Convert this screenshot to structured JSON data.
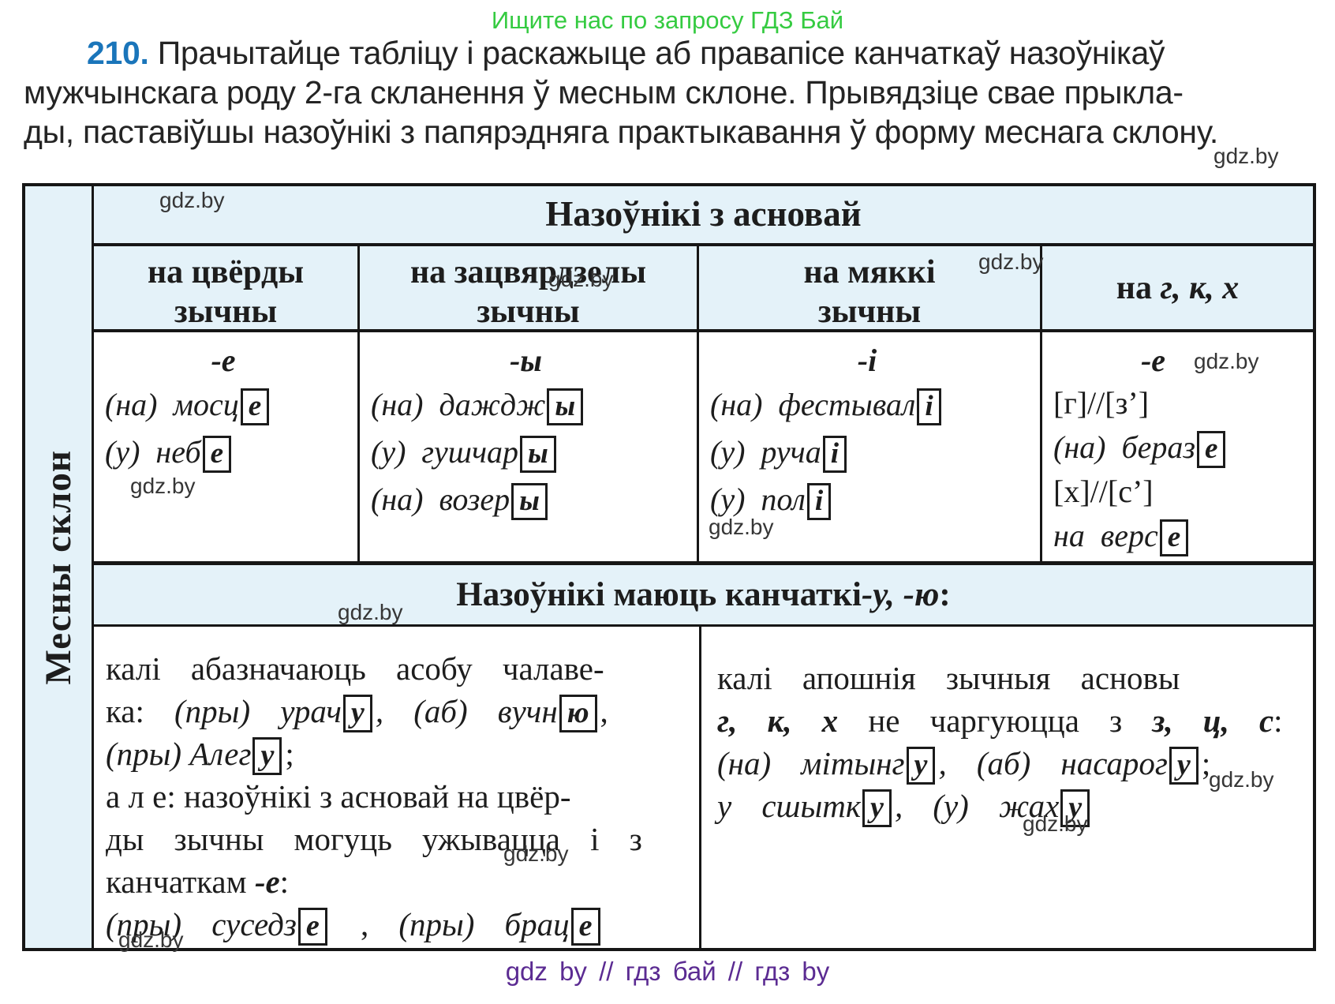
{
  "page": {
    "top_banner": "Ищите нас по запросу ГДЗ Бай",
    "exercise_number": "210.",
    "paragraph_lines": [
      "Прачытайце табліцу і раскажыце аб правапісе канчаткаў назоўнікаў",
      "мужчынскага роду 2-га скланення ў месным склоне. Прывядзіце свае прыкла-",
      "ды, паставіўшы назоўнікі з папярэдняга практыкавання ў форму меснага склону."
    ],
    "watermark": "gdz.by",
    "footer": "gdz by  //  гдз бай  //  гдз by"
  },
  "colors": {
    "banner_green": "#35cb41",
    "exercise_blue": "#1a75ba",
    "footer_purple": "#5b2b92",
    "table_header_bg": "#e4f2f9",
    "border_black": "#161616"
  },
  "table": {
    "row_header": "Месны склон",
    "span_header": "Назоўнікі з асновай",
    "col_headers": [
      {
        "line1": [
          {
            "t": "на цвёрды",
            "s": "b"
          }
        ],
        "line2": [
          {
            "t": "зычны",
            "s": "b"
          }
        ]
      },
      {
        "line1": [
          {
            "t": "на зацвярдзелы",
            "s": "b"
          }
        ],
        "line2": [
          {
            "t": "зычны",
            "s": "b"
          }
        ]
      },
      {
        "line1": [
          {
            "t": "на мяккі",
            "s": "b"
          }
        ],
        "line2": [
          {
            "t": "зычны",
            "s": "b"
          }
        ]
      },
      {
        "line1": [
          {
            "t": "на ",
            "s": "b"
          },
          {
            "t": "г, к, х",
            "s": "bi"
          }
        ],
        "line2": []
      }
    ],
    "cells": [
      {
        "ending": [
          {
            "t": "-е",
            "s": "bi"
          }
        ],
        "lines": [
          {
            "seg": [
              {
                "t": "(на) мосц",
                "s": "i"
              },
              {
                "t": "е",
                "s": "box"
              }
            ]
          },
          {
            "seg": [
              {
                "t": "(у) неб",
                "s": "i"
              },
              {
                "t": "е",
                "s": "box"
              }
            ]
          }
        ]
      },
      {
        "ending": [
          {
            "t": "-ы",
            "s": "bi"
          }
        ],
        "lines": [
          {
            "seg": [
              {
                "t": "(на) даждж",
                "s": "i"
              },
              {
                "t": "ы",
                "s": "box"
              }
            ]
          },
          {
            "seg": [
              {
                "t": "(у) гушчар",
                "s": "i"
              },
              {
                "t": "ы",
                "s": "box"
              }
            ]
          },
          {
            "seg": [
              {
                "t": "(на) возер",
                "s": "i"
              },
              {
                "t": "ы",
                "s": "box"
              }
            ]
          }
        ]
      },
      {
        "ending": [
          {
            "t": "-і",
            "s": "bi"
          }
        ],
        "lines": [
          {
            "seg": [
              {
                "t": "(на) фестывал",
                "s": "i"
              },
              {
                "t": "і",
                "s": "box"
              }
            ]
          },
          {
            "seg": [
              {
                "t": "(у) руча",
                "s": "i"
              },
              {
                "t": "і",
                "s": "box"
              }
            ]
          },
          {
            "seg": [
              {
                "t": "(у) пол",
                "s": "i"
              },
              {
                "t": "і",
                "s": "box"
              }
            ]
          }
        ]
      },
      {
        "ending": [
          {
            "t": "-е",
            "s": "bi"
          }
        ],
        "lines": [
          {
            "seg": [
              {
                "t": "[г]//[з’]",
                "s": "p"
              }
            ]
          },
          {
            "seg": [
              {
                "t": "(на) бераз",
                "s": "i"
              },
              {
                "t": "е",
                "s": "box"
              }
            ]
          },
          {
            "seg": [
              {
                "t": "[х]//[с’]",
                "s": "p"
              }
            ]
          },
          {
            "seg": [
              {
                "t": "на верс",
                "s": "i"
              },
              {
                "t": "е",
                "s": "box"
              }
            ]
          }
        ]
      }
    ],
    "note": [
      {
        "t": "Назоўнікі маюць канчаткі ",
        "s": "b"
      },
      {
        "t": "-у, -ю",
        "s": "bi"
      },
      {
        "t": ":",
        "s": "b"
      }
    ],
    "bottom_left_lines": [
      {
        "w": true,
        "seg": [
          {
            "t": "калі абазначаюць асобу чалаве-",
            "s": "p"
          }
        ]
      },
      {
        "w": true,
        "seg": [
          {
            "t": "ка: ",
            "s": "p"
          },
          {
            "t": "(пры) урач",
            "s": "i"
          },
          {
            "t": "у",
            "s": "box"
          },
          {
            "t": ", (аб) вучн",
            "s": "i"
          },
          {
            "t": "ю",
            "s": "box"
          },
          {
            "t": ",",
            "s": "p"
          }
        ]
      },
      {
        "w": false,
        "seg": [
          {
            "t": "(пры) Алег",
            "s": "i"
          },
          {
            "t": "у",
            "s": "box"
          },
          {
            "t": ";",
            "s": "p"
          }
        ]
      },
      {
        "w": false,
        "seg": [
          {
            "t": "а л е: назоўнікі з асновай на цвёр-",
            "s": "p"
          }
        ]
      },
      {
        "w": true,
        "seg": [
          {
            "t": "ды зычны могуць ужывацца і з",
            "s": "p"
          }
        ]
      },
      {
        "w": false,
        "seg": [
          {
            "t": "канчаткам ",
            "s": "p"
          },
          {
            "t": "-е",
            "s": "bi"
          },
          {
            "t": ":",
            "s": "p"
          }
        ]
      },
      {
        "w": true,
        "seg": [
          {
            "t": "(пры) суседз",
            "s": "i"
          },
          {
            "t": "е",
            "s": "box"
          },
          {
            "t": " , ",
            "s": "p"
          },
          {
            "t": "(пры) брац",
            "s": "i"
          },
          {
            "t": "е",
            "s": "box"
          }
        ]
      }
    ],
    "bottom_right_lines": [
      {
        "w": true,
        "seg": [
          {
            "t": "калі апошнія зычныя асновы",
            "s": "p"
          }
        ]
      },
      {
        "w": true,
        "seg": [
          {
            "t": "г, к, х",
            "s": "bi"
          },
          {
            "t": " не чаргуюцца з ",
            "s": "p"
          },
          {
            "t": "з, ц, с",
            "s": "bi"
          },
          {
            "t": ":",
            "s": "p"
          }
        ]
      },
      {
        "w": true,
        "seg": [
          {
            "t": "(на) мітынг",
            "s": "i"
          },
          {
            "t": "у",
            "s": "box"
          },
          {
            "t": ", (аб) насарог",
            "s": "i"
          },
          {
            "t": "у",
            "s": "box"
          },
          {
            "t": ";",
            "s": "p"
          }
        ]
      },
      {
        "w": true,
        "seg": [
          {
            "t": "у сшытк",
            "s": "i"
          },
          {
            "t": "у",
            "s": "box"
          },
          {
            "t": ", (у) жах",
            "s": "i"
          },
          {
            "t": "у",
            "s": "box"
          }
        ]
      }
    ]
  }
}
